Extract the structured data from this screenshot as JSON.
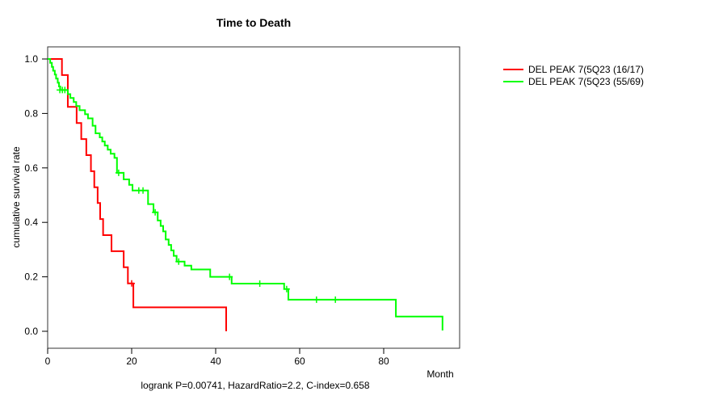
{
  "title": "Time to Death",
  "footnote": "logrank P=0.00741, HazardRatio=2.2, C-index=0.658",
  "legend": {
    "items": [
      {
        "label": "DEL PEAK  7(5Q23 (16/17)",
        "color": "#ff0000"
      },
      {
        "label": "DEL PEAK  7(5Q23 (55/69)",
        "color": "#00ff00"
      }
    ]
  },
  "chart_data": {
    "type": "line",
    "subtype": "kaplan-meier-step",
    "title": "Time to Death",
    "xlabel": "Month",
    "ylabel": "cumulative survival rate",
    "xlim": [
      0,
      98
    ],
    "ylim": [
      0,
      1
    ],
    "xticks": [
      0,
      20,
      40,
      60,
      80
    ],
    "yticks": [
      0.0,
      0.2,
      0.4,
      0.6,
      0.8,
      1.0
    ],
    "grid": false,
    "legend_position": "top-right-outside",
    "series": [
      {
        "name": "DEL PEAK  7(5Q23 (16/17)",
        "color": "#ff0000",
        "start": [
          0,
          1.0
        ],
        "steps": [
          [
            3.4,
            0.941
          ],
          [
            4.8,
            0.824
          ],
          [
            6.9,
            0.765
          ],
          [
            8.0,
            0.706
          ],
          [
            9.2,
            0.647
          ],
          [
            10.3,
            0.588
          ],
          [
            11.1,
            0.529
          ],
          [
            11.9,
            0.471
          ],
          [
            12.5,
            0.412
          ],
          [
            13.2,
            0.353
          ],
          [
            15.2,
            0.294
          ],
          [
            18.1,
            0.235
          ],
          [
            19.1,
            0.176
          ],
          [
            20.4,
            0.088
          ],
          [
            42.5,
            0.0
          ]
        ],
        "censored": [
          [
            20.0,
            0.176
          ]
        ]
      },
      {
        "name": "DEL PEAK  7(5Q23 (55/69)",
        "color": "#00ff00",
        "start": [
          0,
          1.0
        ],
        "steps": [
          [
            0.6,
            0.986
          ],
          [
            1.0,
            0.971
          ],
          [
            1.3,
            0.957
          ],
          [
            1.7,
            0.943
          ],
          [
            2.0,
            0.928
          ],
          [
            2.4,
            0.913
          ],
          [
            2.7,
            0.899
          ],
          [
            3.0,
            0.886
          ],
          [
            4.8,
            0.871
          ],
          [
            5.4,
            0.857
          ],
          [
            6.2,
            0.842
          ],
          [
            6.8,
            0.827
          ],
          [
            7.6,
            0.812
          ],
          [
            8.9,
            0.797
          ],
          [
            9.6,
            0.782
          ],
          [
            10.7,
            0.755
          ],
          [
            11.4,
            0.727
          ],
          [
            12.4,
            0.712
          ],
          [
            13.0,
            0.697
          ],
          [
            13.6,
            0.682
          ],
          [
            14.3,
            0.667
          ],
          [
            15.0,
            0.652
          ],
          [
            15.9,
            0.637
          ],
          [
            16.5,
            0.582
          ],
          [
            18.1,
            0.558
          ],
          [
            19.4,
            0.538
          ],
          [
            20.2,
            0.517
          ],
          [
            23.9,
            0.467
          ],
          [
            25.2,
            0.437
          ],
          [
            26.2,
            0.407
          ],
          [
            26.9,
            0.387
          ],
          [
            27.5,
            0.367
          ],
          [
            28.1,
            0.337
          ],
          [
            28.8,
            0.317
          ],
          [
            29.4,
            0.297
          ],
          [
            30.0,
            0.277
          ],
          [
            30.7,
            0.256
          ],
          [
            32.6,
            0.241
          ],
          [
            34.2,
            0.227
          ],
          [
            38.7,
            0.2
          ],
          [
            43.8,
            0.175
          ],
          [
            56.3,
            0.155
          ],
          [
            57.3,
            0.116
          ],
          [
            82.9,
            0.054
          ],
          [
            94.0,
            0.003
          ]
        ],
        "censored": [
          [
            2.9,
            0.886
          ],
          [
            3.5,
            0.886
          ],
          [
            4.1,
            0.886
          ],
          [
            16.9,
            0.582
          ],
          [
            21.7,
            0.517
          ],
          [
            22.7,
            0.517
          ],
          [
            25.6,
            0.437
          ],
          [
            31.2,
            0.256
          ],
          [
            43.3,
            0.2
          ],
          [
            50.5,
            0.175
          ],
          [
            56.9,
            0.155
          ],
          [
            64.0,
            0.116
          ],
          [
            68.5,
            0.116
          ]
        ]
      }
    ]
  }
}
